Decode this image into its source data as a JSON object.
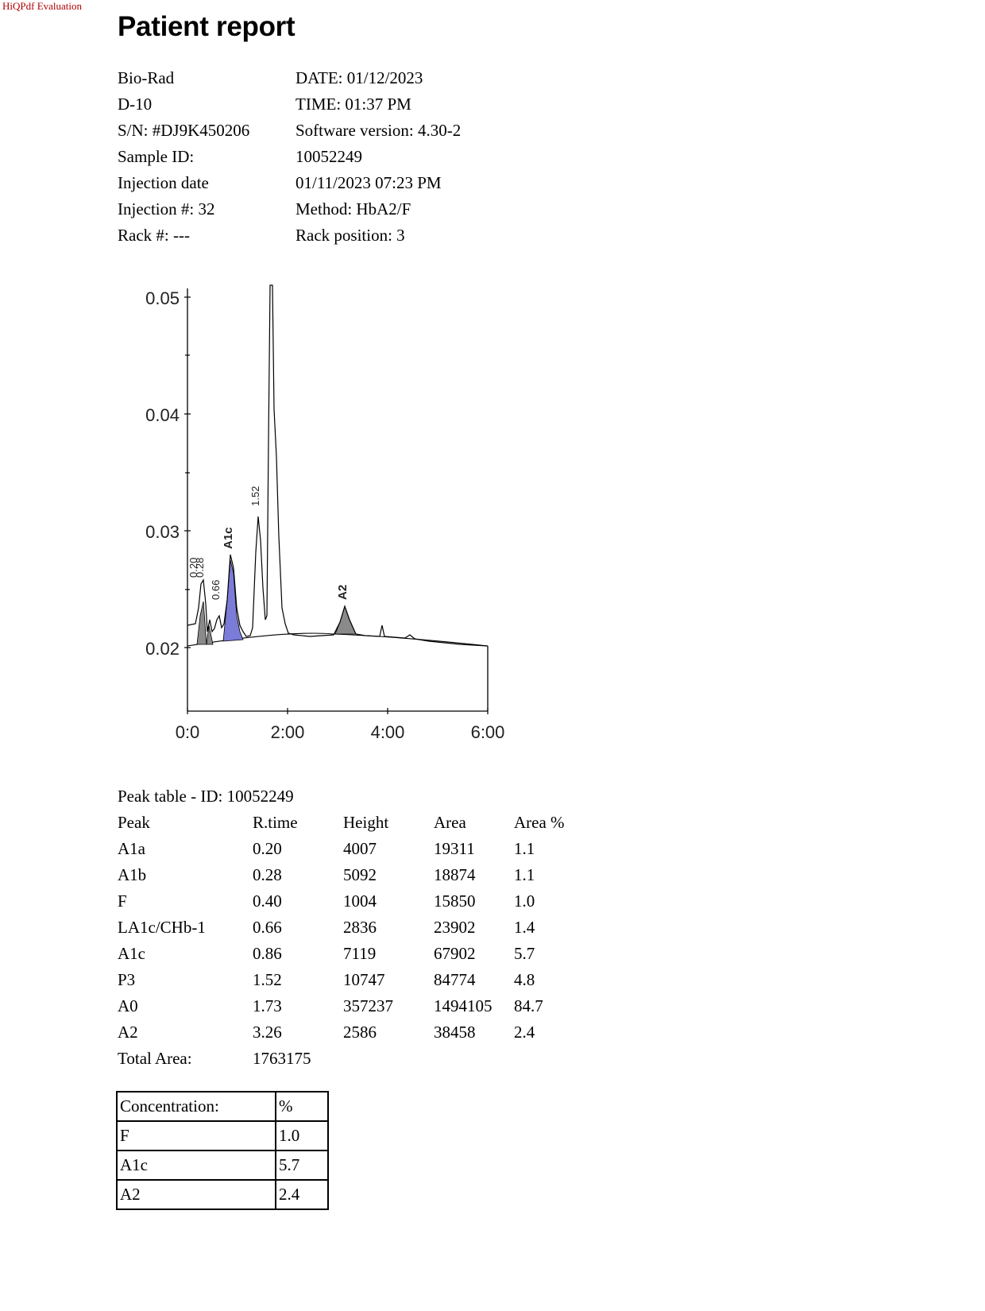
{
  "watermark": "HiQPdf Evaluation",
  "title": "Patient report",
  "info": {
    "rows": [
      {
        "left": "Bio-Rad",
        "right": "DATE: 01/12/2023"
      },
      {
        "left": "D-10",
        "right": "TIME:  01:37 PM"
      },
      {
        "left": "S/N: #DJ9K450206",
        "right": "Software version: 4.30-2"
      },
      {
        "left": "Sample ID:",
        "right": "10052249"
      },
      {
        "left": "Injection date",
        "right": "01/11/2023 07:23 PM"
      },
      {
        "left": "Injection #: 32",
        "right": "Method: HbA2/F"
      },
      {
        "left": "Rack #: ---",
        "right": "Rack position: 3"
      }
    ]
  },
  "chart_data": {
    "type": "line",
    "title": "",
    "xlabel": "",
    "ylabel": "",
    "x_ticks": [
      "0:0",
      "2:00",
      "4:00",
      "6:00"
    ],
    "y_ticks": [
      "0.02",
      "0.03",
      "0.04",
      "0.05"
    ],
    "xlim": [
      0,
      6
    ],
    "ylim": [
      0.015,
      0.05
    ],
    "peaks": [
      {
        "label": "0.20",
        "rt": 0.2
      },
      {
        "label": "0.28",
        "rt": 0.28
      },
      {
        "label": "0.66",
        "rt": 0.66
      },
      {
        "label": "A1c",
        "rt": 0.86
      },
      {
        "label": "1.52",
        "rt": 1.52
      },
      {
        "label": "A2",
        "rt": 3.26
      }
    ],
    "colors": {
      "a1c_fill": "#7b7bd8",
      "shaded_fill": "#8a8a8a",
      "line": "#000000"
    }
  },
  "peak_table": {
    "title": "Peak table  -  ID: 10052249",
    "headers": [
      "Peak",
      "R.time",
      "Height",
      "Area",
      "Area %"
    ],
    "rows": [
      [
        "A1a",
        "0.20",
        "4007",
        "19311",
        "1.1"
      ],
      [
        "A1b",
        "0.28",
        "5092",
        "18874",
        "1.1"
      ],
      [
        "F",
        "0.40",
        "1004",
        "15850",
        "1.0"
      ],
      [
        "LA1c/CHb-1",
        "0.66",
        "2836",
        "23902",
        "1.4"
      ],
      [
        "A1c",
        "0.86",
        "7119",
        "67902",
        "5.7"
      ],
      [
        "P3",
        "1.52",
        "10747",
        "84774",
        "4.8"
      ],
      [
        "A0",
        "1.73",
        "357237",
        "1494105",
        "84.7"
      ],
      [
        "A2",
        "3.26",
        "2586",
        "38458",
        "2.4"
      ]
    ],
    "total_label": "Total Area:",
    "total_value": "1763175"
  },
  "concentration": {
    "header": [
      "Concentration:",
      "%"
    ],
    "rows": [
      [
        "F",
        "1.0"
      ],
      [
        "A1c",
        "5.7"
      ],
      [
        "A2",
        "2.4"
      ]
    ]
  }
}
